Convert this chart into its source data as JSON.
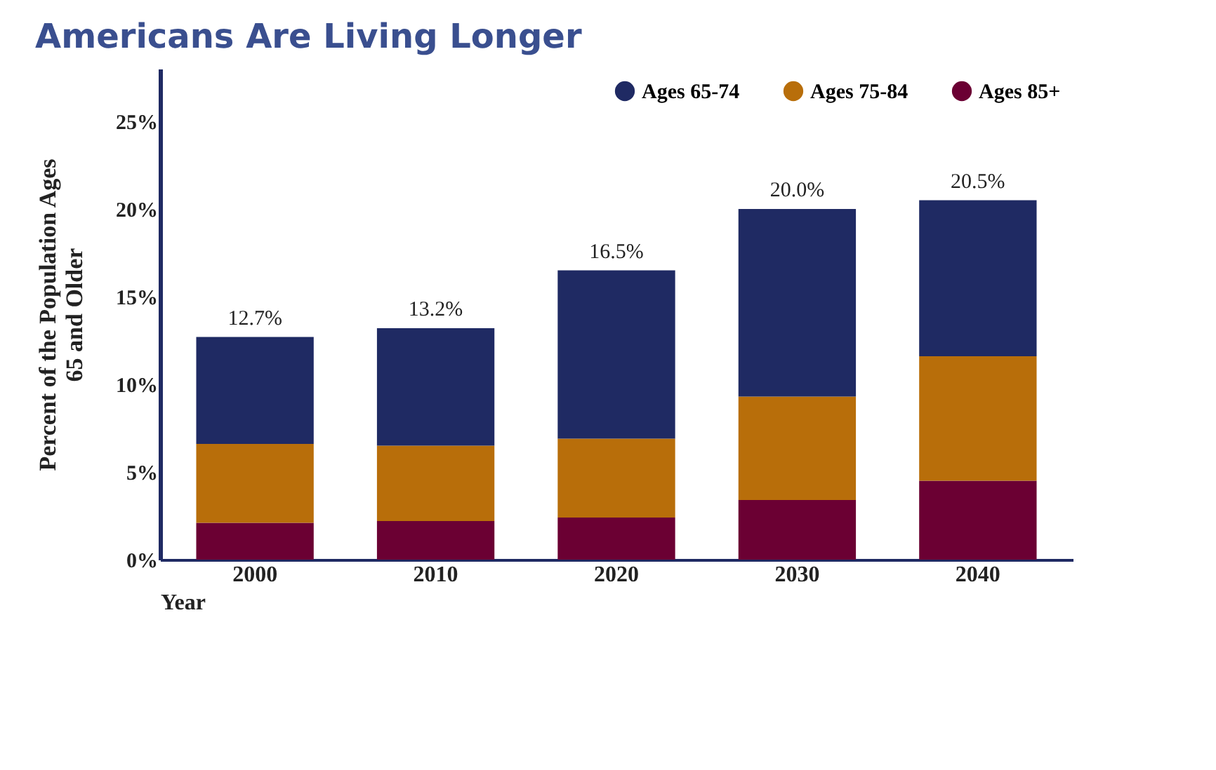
{
  "chart_data": {
    "type": "bar",
    "title": "Americans Are Living Longer",
    "xlabel": "Year",
    "ylabel": "Percent of the Population Ages\n65 and Older",
    "categories": [
      "2000",
      "2010",
      "2020",
      "2030",
      "2040"
    ],
    "stacked": true,
    "series": [
      {
        "name": "Ages 85+",
        "color": "#6b0033",
        "values": [
          2.1,
          2.2,
          2.4,
          3.4,
          4.5
        ]
      },
      {
        "name": "Ages 75-84",
        "color": "#b86e0a",
        "values": [
          4.5,
          4.3,
          4.5,
          5.9,
          7.1
        ]
      },
      {
        "name": "Ages 65-74",
        "color": "#1f2a63",
        "values": [
          6.1,
          6.7,
          9.6,
          10.7,
          8.9
        ]
      }
    ],
    "totals": [
      "12.7%",
      "13.2%",
      "16.5%",
      "20.0%",
      "20.5%"
    ],
    "ylim": [
      0,
      28
    ],
    "yticks": [
      {
        "value": 0,
        "label": "0%"
      },
      {
        "value": 5,
        "label": "5%"
      },
      {
        "value": 10,
        "label": "10%"
      },
      {
        "value": 15,
        "label": "15%"
      },
      {
        "value": 20,
        "label": "20%"
      },
      {
        "value": 25,
        "label": "25%"
      }
    ],
    "grid": false,
    "legend": "top right"
  }
}
